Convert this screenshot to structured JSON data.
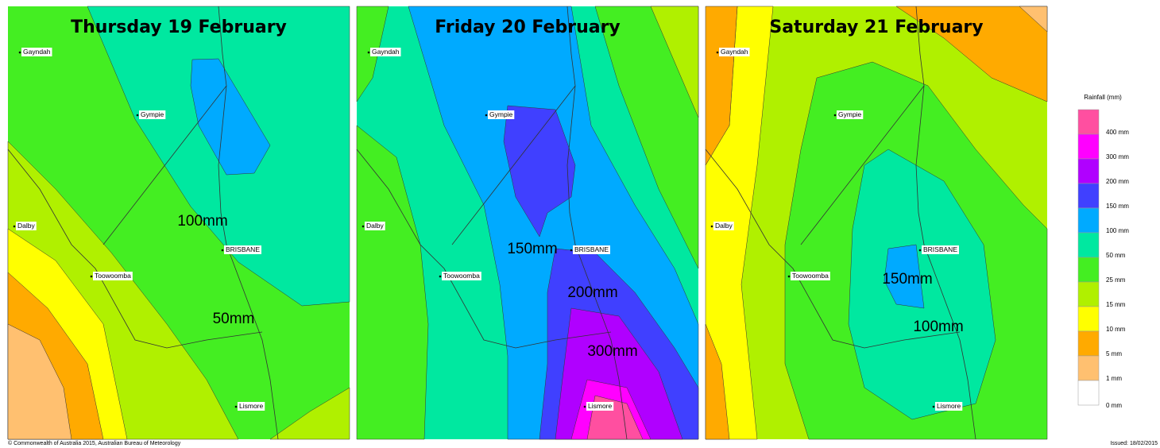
{
  "panels": [
    {
      "title": "Thursday 19 February",
      "places": [
        "Gayndah",
        "Gympie",
        "Dalby",
        "BRISBANE",
        "Toowoomba",
        "Lismore"
      ],
      "contour_labels": [
        "100mm",
        "50mm"
      ]
    },
    {
      "title": "Friday 20 February",
      "places": [
        "Gayndah",
        "Gympie",
        "Dalby",
        "BRISBANE",
        "Toowoomba",
        "Lismore"
      ],
      "contour_labels": [
        "150mm",
        "200mm",
        "300mm"
      ]
    },
    {
      "title": "Saturday 21 February",
      "places": [
        "Gayndah",
        "Gympie",
        "Dalby",
        "BRISBANE",
        "Toowoomba",
        "Lismore"
      ],
      "contour_labels": [
        "150mm",
        "100mm"
      ]
    }
  ],
  "legend": {
    "title": "Rainfall (mm)",
    "items": [
      {
        "label": "400 mm",
        "color": "#ff4fa0"
      },
      {
        "label": "300 mm",
        "color": "#ff00ff"
      },
      {
        "label": "200 mm",
        "color": "#b000ff"
      },
      {
        "label": "150 mm",
        "color": "#4040ff"
      },
      {
        "label": "100 mm",
        "color": "#00aaff"
      },
      {
        "label": "50 mm",
        "color": "#00e8a0"
      },
      {
        "label": "25 mm",
        "color": "#44ee22"
      },
      {
        "label": "15 mm",
        "color": "#b0f000"
      },
      {
        "label": "10 mm",
        "color": "#ffff00"
      },
      {
        "label": "5 mm",
        "color": "#ffaa00"
      },
      {
        "label": "1 mm",
        "color": "#ffc070"
      },
      {
        "label": "0 mm",
        "color": "#ffffff"
      }
    ]
  },
  "footer": {
    "copyright": "© Commonwealth of Australia 2015, Australian Bureau of Meteorology",
    "issued": "Issued: 18/02/2015"
  }
}
